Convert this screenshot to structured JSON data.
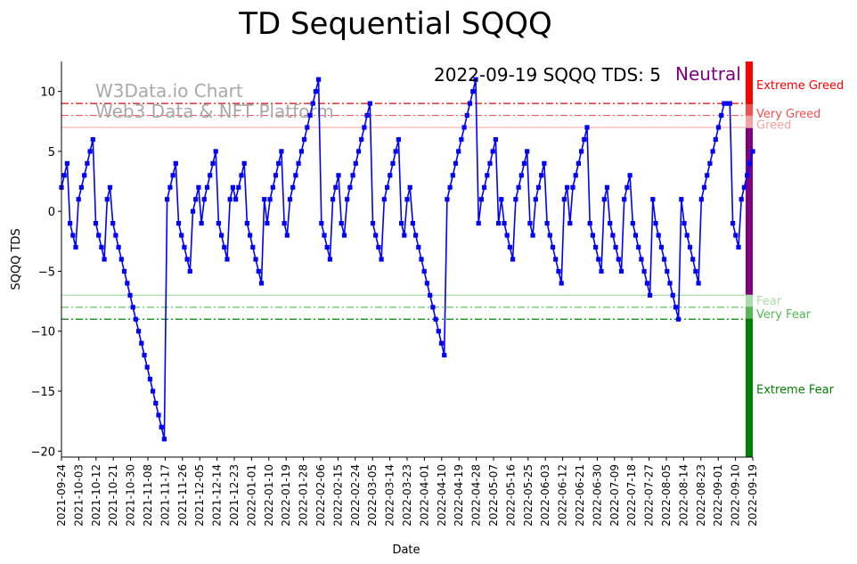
{
  "chart_data": {
    "type": "line",
    "title": "TD Sequential SQQQ",
    "xlabel": "Date",
    "ylabel": "SQQQ TDS",
    "ylim": [
      -20.5,
      12.5
    ],
    "y_ticks": [
      -20,
      -15,
      -10,
      -5,
      0,
      5,
      10
    ],
    "x_ticks": [
      "2021-09-24",
      "2021-10-03",
      "2021-10-12",
      "2021-10-21",
      "2021-10-30",
      "2021-11-08",
      "2021-11-17",
      "2021-11-26",
      "2021-12-05",
      "2021-12-14",
      "2021-12-23",
      "2022-01-01",
      "2022-01-10",
      "2022-01-19",
      "2022-01-28",
      "2022-02-06",
      "2022-02-15",
      "2022-02-24",
      "2022-03-05",
      "2022-03-14",
      "2022-03-23",
      "2022-04-01",
      "2022-04-10",
      "2022-04-19",
      "2022-04-28",
      "2022-05-07",
      "2022-05-16",
      "2022-05-25",
      "2022-06-03",
      "2022-06-12",
      "2022-06-21",
      "2022-06-30",
      "2022-07-09",
      "2022-07-18",
      "2022-07-27",
      "2022-08-05",
      "2022-08-14",
      "2022-08-23",
      "2022-09-01",
      "2022-09-10",
      "2022-09-19"
    ],
    "x_start": "2021-09-24",
    "x_end": "2022-09-19",
    "annotation": "2022-09-19 SQQQ TDS: 5",
    "sentiment": "Neutral",
    "sentiment_color": "#800080",
    "watermark_line1": "W3Data.io Chart",
    "watermark_line2": "Web3 Data & NFT Platform",
    "series_color": "#0000ff",
    "thresholds": [
      {
        "value": 9,
        "color": "#dd0000",
        "style": "dashdot"
      },
      {
        "value": 8,
        "color": "#f06060",
        "style": "dashdot"
      },
      {
        "value": 7,
        "color": "#f5b0b0",
        "style": "solid"
      },
      {
        "value": -7,
        "color": "#a8dca8",
        "style": "solid"
      },
      {
        "value": -8,
        "color": "#55b855",
        "style": "dashdot"
      },
      {
        "value": -9,
        "color": "#008000",
        "style": "dashdot"
      }
    ],
    "zones": [
      {
        "label": "Extreme Greed",
        "from": 9,
        "to": 12.5,
        "color": "#ff0000",
        "label_value": 10.5
      },
      {
        "label": "Very Greed",
        "from": 8,
        "to": 9,
        "color": "#f05050",
        "label_value": 8.1
      },
      {
        "label": "Greed",
        "from": 7,
        "to": 8,
        "color": "#f5a0a0",
        "label_value": 7.2
      },
      {
        "label": "Neutral",
        "from": -7,
        "to": 7,
        "color": "#800080",
        "label_value": null
      },
      {
        "label": "Fear",
        "from": -8,
        "to": -7,
        "color": "#a8dca8",
        "label_value": -7.5
      },
      {
        "label": "Very Fear",
        "from": -9,
        "to": -8,
        "color": "#55b855",
        "label_value": -8.6
      },
      {
        "label": "Extreme Fear",
        "from": -20.5,
        "to": -9,
        "color": "#008000",
        "label_value": -14.9
      }
    ],
    "values": [
      2,
      3,
      4,
      -1,
      -2,
      -3,
      1,
      2,
      3,
      4,
      5,
      6,
      -1,
      -2,
      -3,
      -4,
      1,
      2,
      -1,
      -2,
      -3,
      -4,
      -5,
      -6,
      -7,
      -8,
      -9,
      -10,
      -11,
      -12,
      -13,
      -14,
      -15,
      -16,
      -17,
      -18,
      -19,
      1,
      2,
      3,
      4,
      -1,
      -2,
      -3,
      -4,
      -5,
      0,
      1,
      2,
      -1,
      1,
      2,
      3,
      4,
      5,
      -1,
      -2,
      -3,
      -4,
      1,
      2,
      1,
      2,
      3,
      4,
      -1,
      -2,
      -3,
      -4,
      -5,
      -6,
      1,
      -1,
      1,
      2,
      3,
      4,
      5,
      -1,
      -2,
      1,
      2,
      3,
      4,
      5,
      6,
      7,
      8,
      9,
      10,
      11,
      -1,
      -2,
      -3,
      -4,
      1,
      2,
      3,
      -1,
      -2,
      1,
      2,
      3,
      4,
      5,
      6,
      7,
      8,
      9,
      -1,
      -2,
      -3,
      -4,
      1,
      2,
      3,
      4,
      5,
      6,
      -1,
      -2,
      1,
      2,
      -1,
      -2,
      -3,
      -4,
      -5,
      -6,
      -7,
      -8,
      -9,
      -10,
      -11,
      -12,
      1,
      2,
      3,
      4,
      5,
      6,
      7,
      8,
      9,
      10,
      11,
      -1,
      1,
      2,
      3,
      4,
      5,
      6,
      -1,
      1,
      -1,
      -2,
      -3,
      -4,
      1,
      2,
      3,
      4,
      5,
      -1,
      -2,
      1,
      2,
      3,
      4,
      -1,
      -2,
      -3,
      -4,
      -5,
      -6,
      1,
      2,
      -1,
      2,
      3,
      4,
      5,
      6,
      7,
      -1,
      -2,
      -3,
      -4,
      -5,
      1,
      2,
      -1,
      -2,
      -3,
      -4,
      -5,
      1,
      2,
      3,
      -1,
      -2,
      -3,
      -4,
      -5,
      -6,
      -7,
      1,
      -1,
      -2,
      -3,
      -4,
      -5,
      -6,
      -7,
      -8,
      -9,
      1,
      -1,
      -2,
      -3,
      -4,
      -5,
      -6,
      1,
      2,
      3,
      4,
      5,
      6,
      7,
      8,
      9,
      9,
      9,
      -1,
      -2,
      -3,
      1,
      2,
      3,
      4,
      5
    ]
  }
}
